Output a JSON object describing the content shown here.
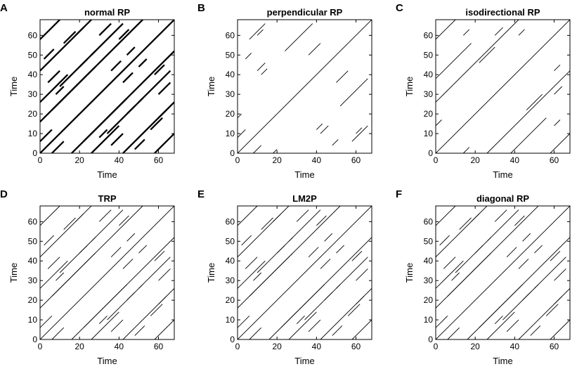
{
  "chart_data": [
    {
      "type": "scatter",
      "panel": "A",
      "title": "normal RP",
      "xlabel": "Time",
      "ylabel": "Time",
      "xlim": [
        0,
        68
      ],
      "ylim": [
        0,
        68
      ],
      "xticks": [
        0,
        20,
        40,
        60
      ],
      "yticks": [
        0,
        10,
        20,
        30,
        40,
        50,
        60
      ],
      "line_weight": "heavy",
      "segments": [
        {
          "x0": 0,
          "y0": 0,
          "len": 68
        },
        {
          "x0": 0,
          "y0": 16,
          "len": 52
        },
        {
          "x0": 16,
          "y0": 0,
          "len": 52
        },
        {
          "x0": 0,
          "y0": 42,
          "len": 26
        },
        {
          "x0": 42,
          "y0": 0,
          "len": 26
        },
        {
          "x0": 0,
          "y0": 26,
          "len": 14
        },
        {
          "x0": 26,
          "y0": 0,
          "len": 14
        },
        {
          "x0": 22,
          "y0": 6,
          "len": 22
        },
        {
          "x0": 6,
          "y0": 22,
          "len": 22
        },
        {
          "x0": 34,
          "y0": 10,
          "len": 18
        },
        {
          "x0": 10,
          "y0": 34,
          "len": 18
        },
        {
          "x0": 50,
          "y0": 26,
          "len": 16
        },
        {
          "x0": 26,
          "y0": 50,
          "len": 16
        },
        {
          "x0": 0,
          "y0": 58,
          "len": 10
        },
        {
          "x0": 58,
          "y0": 0,
          "len": 10
        },
        {
          "x0": 6,
          "y0": 0,
          "len": 6
        },
        {
          "x0": 0,
          "y0": 6,
          "len": 6
        },
        {
          "x0": 12,
          "y0": 56,
          "len": 6
        },
        {
          "x0": 56,
          "y0": 12,
          "len": 6
        },
        {
          "x0": 2,
          "y0": 48,
          "len": 5
        },
        {
          "x0": 48,
          "y0": 2,
          "len": 5
        },
        {
          "x0": 30,
          "y0": 60,
          "len": 6
        },
        {
          "x0": 60,
          "y0": 30,
          "len": 6
        },
        {
          "x0": 40,
          "y0": 58,
          "len": 5
        },
        {
          "x0": 58,
          "y0": 40,
          "len": 5
        },
        {
          "x0": 8,
          "y0": 30,
          "len": 4
        },
        {
          "x0": 30,
          "y0": 8,
          "len": 4
        },
        {
          "x0": 36,
          "y0": 42,
          "len": 5
        },
        {
          "x0": 42,
          "y0": 36,
          "len": 5
        },
        {
          "x0": 18,
          "y0": 60,
          "len": 4
        },
        {
          "x0": 60,
          "y0": 18,
          "len": 4
        },
        {
          "x0": 4,
          "y0": 36,
          "len": 6
        },
        {
          "x0": 36,
          "y0": 4,
          "len": 6
        },
        {
          "x0": 44,
          "y0": 50,
          "len": 4
        },
        {
          "x0": 50,
          "y0": 44,
          "len": 4
        },
        {
          "x0": 20,
          "y0": 44,
          "len": 4
        },
        {
          "x0": 44,
          "y0": 20,
          "len": 4
        }
      ]
    },
    {
      "type": "scatter",
      "panel": "B",
      "title": "perpendicular RP",
      "xlabel": "Time",
      "ylabel": "Time",
      "xlim": [
        0,
        68
      ],
      "ylim": [
        0,
        68
      ],
      "xticks": [
        0,
        20,
        40,
        60
      ],
      "yticks": [
        0,
        10,
        20,
        30,
        40,
        50,
        60
      ],
      "line_weight": "thin",
      "segments": [
        {
          "x0": 0,
          "y0": 0,
          "len": 68
        },
        {
          "x0": 6,
          "y0": 58,
          "len": 8
        },
        {
          "x0": 58,
          "y0": 6,
          "len": 8
        },
        {
          "x0": 10,
          "y0": 42,
          "len": 4
        },
        {
          "x0": 42,
          "y0": 10,
          "len": 4
        },
        {
          "x0": 0,
          "y0": 8,
          "len": 4
        },
        {
          "x0": 8,
          "y0": 0,
          "len": 4
        },
        {
          "x0": 52,
          "y0": 24,
          "len": 14
        },
        {
          "x0": 24,
          "y0": 52,
          "len": 14
        },
        {
          "x0": 50,
          "y0": 36,
          "len": 6
        },
        {
          "x0": 36,
          "y0": 50,
          "len": 6
        },
        {
          "x0": 4,
          "y0": 48,
          "len": 3
        },
        {
          "x0": 48,
          "y0": 4,
          "len": 3
        },
        {
          "x0": 60,
          "y0": 10,
          "len": 3
        },
        {
          "x0": 10,
          "y0": 60,
          "len": 3
        },
        {
          "x0": 40,
          "y0": 12,
          "len": 3
        },
        {
          "x0": 12,
          "y0": 40,
          "len": 3
        },
        {
          "x0": 0,
          "y0": 18,
          "len": 2
        },
        {
          "x0": 18,
          "y0": 0,
          "len": 2
        }
      ]
    },
    {
      "type": "scatter",
      "panel": "C",
      "title": "isodirectional RP",
      "xlabel": "Time",
      "ylabel": "Time",
      "xlim": [
        0,
        68
      ],
      "ylim": [
        0,
        68
      ],
      "xticks": [
        0,
        20,
        40,
        60
      ],
      "yticks": [
        0,
        10,
        20,
        30,
        40,
        50,
        60
      ],
      "line_weight": "thin",
      "segments": [
        {
          "x0": 0,
          "y0": 0,
          "len": 68
        },
        {
          "x0": 0,
          "y0": 26,
          "len": 42
        },
        {
          "x0": 26,
          "y0": 0,
          "len": 42
        },
        {
          "x0": 4,
          "y0": 42,
          "len": 14
        },
        {
          "x0": 42,
          "y0": 4,
          "len": 14
        },
        {
          "x0": 22,
          "y0": 46,
          "len": 8
        },
        {
          "x0": 46,
          "y0": 22,
          "len": 8
        },
        {
          "x0": 0,
          "y0": 58,
          "len": 10
        },
        {
          "x0": 58,
          "y0": 0,
          "len": 10
        },
        {
          "x0": 0,
          "y0": 38,
          "len": 4
        },
        {
          "x0": 38,
          "y0": 0,
          "len": 4
        },
        {
          "x0": 30,
          "y0": 60,
          "len": 4
        },
        {
          "x0": 60,
          "y0": 30,
          "len": 4
        },
        {
          "x0": 14,
          "y0": 60,
          "len": 3
        },
        {
          "x0": 60,
          "y0": 14,
          "len": 3
        },
        {
          "x0": 42,
          "y0": 60,
          "len": 3
        },
        {
          "x0": 60,
          "y0": 42,
          "len": 3
        },
        {
          "x0": 0,
          "y0": 14,
          "len": 3
        },
        {
          "x0": 14,
          "y0": 0,
          "len": 3
        }
      ]
    },
    {
      "type": "scatter",
      "panel": "D",
      "title": "TRP",
      "xlabel": "Time",
      "ylabel": "Time",
      "xlim": [
        0,
        68
      ],
      "ylim": [
        0,
        68
      ],
      "xticks": [
        0,
        20,
        40,
        60
      ],
      "yticks": [
        0,
        10,
        20,
        30,
        40,
        50,
        60
      ],
      "line_weight": "thin",
      "segments": [
        {
          "x0": 0,
          "y0": 0,
          "len": 68
        },
        {
          "x0": 0,
          "y0": 16,
          "len": 52
        },
        {
          "x0": 16,
          "y0": 0,
          "len": 52
        },
        {
          "x0": 0,
          "y0": 42,
          "len": 26
        },
        {
          "x0": 42,
          "y0": 0,
          "len": 26
        },
        {
          "x0": 0,
          "y0": 26,
          "len": 14
        },
        {
          "x0": 26,
          "y0": 0,
          "len": 14
        },
        {
          "x0": 22,
          "y0": 6,
          "len": 22
        },
        {
          "x0": 6,
          "y0": 22,
          "len": 22
        },
        {
          "x0": 34,
          "y0": 10,
          "len": 18
        },
        {
          "x0": 10,
          "y0": 34,
          "len": 18
        },
        {
          "x0": 50,
          "y0": 26,
          "len": 16
        },
        {
          "x0": 26,
          "y0": 50,
          "len": 16
        },
        {
          "x0": 0,
          "y0": 58,
          "len": 10
        },
        {
          "x0": 58,
          "y0": 0,
          "len": 10
        },
        {
          "x0": 6,
          "y0": 0,
          "len": 6
        },
        {
          "x0": 0,
          "y0": 6,
          "len": 6
        },
        {
          "x0": 12,
          "y0": 56,
          "len": 6
        },
        {
          "x0": 56,
          "y0": 12,
          "len": 6
        },
        {
          "x0": 2,
          "y0": 48,
          "len": 5
        },
        {
          "x0": 48,
          "y0": 2,
          "len": 5
        },
        {
          "x0": 30,
          "y0": 60,
          "len": 6
        },
        {
          "x0": 60,
          "y0": 30,
          "len": 6
        },
        {
          "x0": 40,
          "y0": 58,
          "len": 5
        },
        {
          "x0": 58,
          "y0": 40,
          "len": 5
        },
        {
          "x0": 8,
          "y0": 30,
          "len": 4
        },
        {
          "x0": 30,
          "y0": 8,
          "len": 4
        },
        {
          "x0": 36,
          "y0": 42,
          "len": 5
        },
        {
          "x0": 42,
          "y0": 36,
          "len": 5
        },
        {
          "x0": 18,
          "y0": 60,
          "len": 4
        },
        {
          "x0": 60,
          "y0": 18,
          "len": 4
        },
        {
          "x0": 4,
          "y0": 36,
          "len": 6
        },
        {
          "x0": 36,
          "y0": 4,
          "len": 6
        },
        {
          "x0": 44,
          "y0": 50,
          "len": 4
        },
        {
          "x0": 50,
          "y0": 44,
          "len": 4
        },
        {
          "x0": 20,
          "y0": 44,
          "len": 4
        },
        {
          "x0": 44,
          "y0": 20,
          "len": 4
        }
      ]
    },
    {
      "type": "scatter",
      "panel": "E",
      "title": "LM2P",
      "xlabel": "Time",
      "ylabel": "Time",
      "xlim": [
        0,
        68
      ],
      "ylim": [
        0,
        68
      ],
      "xticks": [
        0,
        20,
        40,
        60
      ],
      "yticks": [
        0,
        10,
        20,
        30,
        40,
        50,
        60
      ],
      "line_weight": "thin",
      "segments": [
        {
          "x0": 0,
          "y0": 0,
          "len": 68
        },
        {
          "x0": 0,
          "y0": 16,
          "len": 52
        },
        {
          "x0": 16,
          "y0": 0,
          "len": 52
        },
        {
          "x0": 0,
          "y0": 42,
          "len": 26
        },
        {
          "x0": 42,
          "y0": 0,
          "len": 26
        },
        {
          "x0": 0,
          "y0": 26,
          "len": 14
        },
        {
          "x0": 26,
          "y0": 0,
          "len": 14
        },
        {
          "x0": 22,
          "y0": 6,
          "len": 22
        },
        {
          "x0": 6,
          "y0": 22,
          "len": 22
        },
        {
          "x0": 34,
          "y0": 10,
          "len": 18
        },
        {
          "x0": 10,
          "y0": 34,
          "len": 18
        },
        {
          "x0": 50,
          "y0": 26,
          "len": 16
        },
        {
          "x0": 26,
          "y0": 50,
          "len": 16
        },
        {
          "x0": 0,
          "y0": 58,
          "len": 10
        },
        {
          "x0": 58,
          "y0": 0,
          "len": 10
        },
        {
          "x0": 6,
          "y0": 0,
          "len": 6
        },
        {
          "x0": 0,
          "y0": 6,
          "len": 6
        },
        {
          "x0": 12,
          "y0": 56,
          "len": 6
        },
        {
          "x0": 56,
          "y0": 12,
          "len": 6
        },
        {
          "x0": 2,
          "y0": 48,
          "len": 5
        },
        {
          "x0": 48,
          "y0": 2,
          "len": 5
        },
        {
          "x0": 30,
          "y0": 60,
          "len": 6
        },
        {
          "x0": 60,
          "y0": 30,
          "len": 6
        },
        {
          "x0": 40,
          "y0": 58,
          "len": 5
        },
        {
          "x0": 58,
          "y0": 40,
          "len": 5
        },
        {
          "x0": 8,
          "y0": 30,
          "len": 4
        },
        {
          "x0": 30,
          "y0": 8,
          "len": 4
        },
        {
          "x0": 36,
          "y0": 42,
          "len": 5
        },
        {
          "x0": 42,
          "y0": 36,
          "len": 5
        },
        {
          "x0": 18,
          "y0": 60,
          "len": 4
        },
        {
          "x0": 60,
          "y0": 18,
          "len": 4
        },
        {
          "x0": 4,
          "y0": 36,
          "len": 6
        },
        {
          "x0": 36,
          "y0": 4,
          "len": 6
        },
        {
          "x0": 44,
          "y0": 50,
          "len": 4
        },
        {
          "x0": 50,
          "y0": 44,
          "len": 4
        },
        {
          "x0": 20,
          "y0": 44,
          "len": 4
        },
        {
          "x0": 44,
          "y0": 20,
          "len": 4
        }
      ]
    },
    {
      "type": "scatter",
      "panel": "F",
      "title": "diagonal RP",
      "xlabel": "Time",
      "ylabel": "Time",
      "xlim": [
        0,
        68
      ],
      "ylim": [
        0,
        68
      ],
      "xticks": [
        0,
        20,
        40,
        60
      ],
      "yticks": [
        0,
        10,
        20,
        30,
        40,
        50,
        60
      ],
      "line_weight": "thin",
      "segments": [
        {
          "x0": 0,
          "y0": 0,
          "len": 68
        },
        {
          "x0": 0,
          "y0": 16,
          "len": 52
        },
        {
          "x0": 16,
          "y0": 0,
          "len": 52
        },
        {
          "x0": 0,
          "y0": 42,
          "len": 26
        },
        {
          "x0": 42,
          "y0": 0,
          "len": 26
        },
        {
          "x0": 0,
          "y0": 26,
          "len": 14
        },
        {
          "x0": 26,
          "y0": 0,
          "len": 14
        },
        {
          "x0": 22,
          "y0": 6,
          "len": 22
        },
        {
          "x0": 6,
          "y0": 22,
          "len": 22
        },
        {
          "x0": 34,
          "y0": 10,
          "len": 18
        },
        {
          "x0": 10,
          "y0": 34,
          "len": 18
        },
        {
          "x0": 50,
          "y0": 26,
          "len": 16
        },
        {
          "x0": 26,
          "y0": 50,
          "len": 16
        },
        {
          "x0": 0,
          "y0": 58,
          "len": 10
        },
        {
          "x0": 58,
          "y0": 0,
          "len": 10
        },
        {
          "x0": 6,
          "y0": 0,
          "len": 6
        },
        {
          "x0": 0,
          "y0": 6,
          "len": 6
        },
        {
          "x0": 12,
          "y0": 56,
          "len": 6
        },
        {
          "x0": 56,
          "y0": 12,
          "len": 6
        },
        {
          "x0": 2,
          "y0": 48,
          "len": 5
        },
        {
          "x0": 48,
          "y0": 2,
          "len": 5
        },
        {
          "x0": 30,
          "y0": 60,
          "len": 6
        },
        {
          "x0": 60,
          "y0": 30,
          "len": 6
        },
        {
          "x0": 40,
          "y0": 58,
          "len": 5
        },
        {
          "x0": 58,
          "y0": 40,
          "len": 5
        },
        {
          "x0": 8,
          "y0": 30,
          "len": 4
        },
        {
          "x0": 30,
          "y0": 8,
          "len": 4
        },
        {
          "x0": 36,
          "y0": 42,
          "len": 5
        },
        {
          "x0": 42,
          "y0": 36,
          "len": 5
        },
        {
          "x0": 18,
          "y0": 60,
          "len": 4
        },
        {
          "x0": 60,
          "y0": 18,
          "len": 4
        },
        {
          "x0": 4,
          "y0": 36,
          "len": 6
        },
        {
          "x0": 36,
          "y0": 4,
          "len": 6
        },
        {
          "x0": 44,
          "y0": 50,
          "len": 4
        },
        {
          "x0": 50,
          "y0": 44,
          "len": 4
        },
        {
          "x0": 20,
          "y0": 44,
          "len": 4
        },
        {
          "x0": 44,
          "y0": 20,
          "len": 4
        }
      ]
    }
  ]
}
